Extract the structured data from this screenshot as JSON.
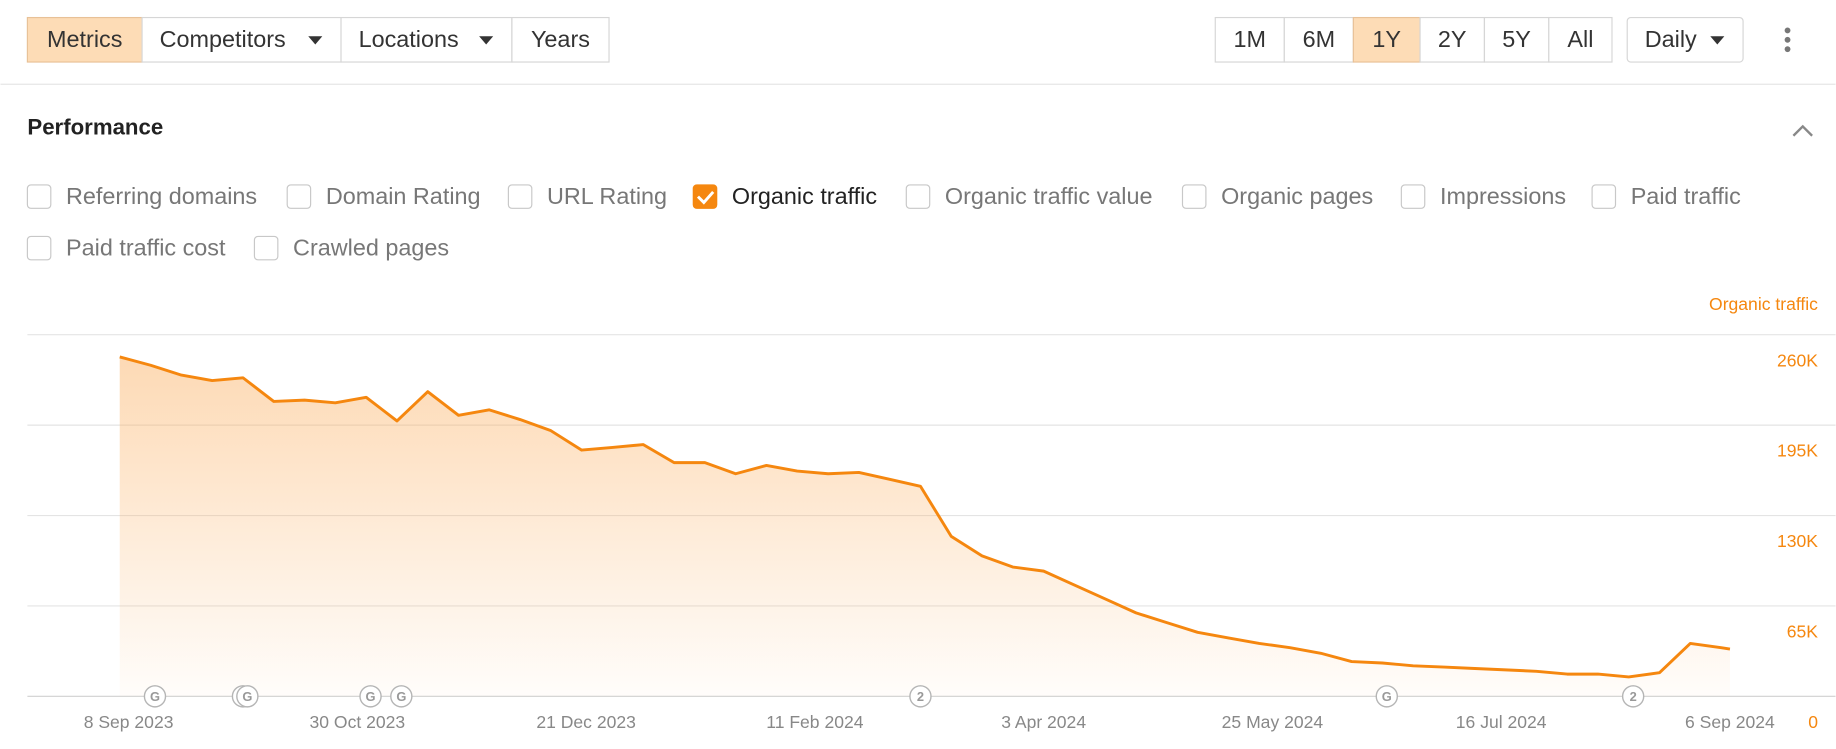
{
  "toolbar": {
    "filters": [
      {
        "label": "Metrics",
        "dropdown": false,
        "selected": true
      },
      {
        "label": "Competitors",
        "dropdown": true,
        "selected": false
      },
      {
        "label": "Locations",
        "dropdown": true,
        "selected": false
      },
      {
        "label": "Years",
        "dropdown": false,
        "selected": false
      }
    ],
    "ranges": [
      {
        "label": "1M",
        "selected": false
      },
      {
        "label": "6M",
        "selected": false
      },
      {
        "label": "1Y",
        "selected": true
      },
      {
        "label": "2Y",
        "selected": false
      },
      {
        "label": "5Y",
        "selected": false
      },
      {
        "label": "All",
        "selected": false
      }
    ],
    "granularity": "Daily"
  },
  "section": {
    "title": "Performance",
    "metrics": [
      {
        "label": "Referring domains",
        "checked": false
      },
      {
        "label": "Domain Rating",
        "checked": false
      },
      {
        "label": "URL Rating",
        "checked": false
      },
      {
        "label": "Organic traffic",
        "checked": true
      },
      {
        "label": "Organic traffic value",
        "checked": false
      },
      {
        "label": "Organic pages",
        "checked": false
      },
      {
        "label": "Impressions",
        "checked": false
      },
      {
        "label": "Paid traffic",
        "checked": false
      },
      {
        "label": "Paid traffic cost",
        "checked": false
      },
      {
        "label": "Crawled pages",
        "checked": false
      }
    ]
  },
  "chart_data": {
    "type": "area",
    "y_axis_label": "Organic traffic",
    "x": [
      "2023-09-06",
      "2023-09-13",
      "2023-09-20",
      "2023-09-27",
      "2023-10-04",
      "2023-10-11",
      "2023-10-18",
      "2023-10-25",
      "2023-11-01",
      "2023-11-08",
      "2023-11-15",
      "2023-11-22",
      "2023-11-29",
      "2023-12-06",
      "2023-12-13",
      "2023-12-20",
      "2023-12-27",
      "2024-01-03",
      "2024-01-10",
      "2024-01-17",
      "2024-01-24",
      "2024-01-31",
      "2024-02-07",
      "2024-02-14",
      "2024-02-21",
      "2024-02-28",
      "2024-03-06",
      "2024-03-13",
      "2024-03-20",
      "2024-03-27",
      "2024-04-03",
      "2024-04-10",
      "2024-04-17",
      "2024-04-24",
      "2024-05-01",
      "2024-05-08",
      "2024-05-15",
      "2024-05-22",
      "2024-05-29",
      "2024-06-05",
      "2024-06-12",
      "2024-06-19",
      "2024-06-26",
      "2024-07-03",
      "2024-07-10",
      "2024-07-17",
      "2024-07-24",
      "2024-07-31",
      "2024-08-07",
      "2024-08-14",
      "2024-08-21",
      "2024-08-28",
      "2024-09-04",
      "2024-09-06"
    ],
    "series": [
      {
        "name": "Organic traffic",
        "color": "#f5870f",
        "values": [
          244000,
          238000,
          231000,
          227000,
          229000,
          212000,
          213000,
          211000,
          215000,
          198000,
          219000,
          202000,
          206000,
          199000,
          191000,
          177000,
          179000,
          181000,
          168000,
          168000,
          160000,
          166000,
          162000,
          160000,
          161000,
          156000,
          151000,
          115000,
          101000,
          93000,
          90000,
          80000,
          70000,
          60000,
          53000,
          46000,
          42000,
          38000,
          35000,
          31000,
          25000,
          24000,
          22000,
          21000,
          20000,
          19000,
          18000,
          16000,
          16000,
          14000,
          17000,
          38000,
          35000,
          34000
        ]
      }
    ],
    "xlim": [
      "2023-08-16",
      "2024-09-30"
    ],
    "xticks": [
      {
        "value": "2023-09-08",
        "label": "8 Sep 2023"
      },
      {
        "value": "2023-10-30",
        "label": "30 Oct 2023"
      },
      {
        "value": "2023-12-21",
        "label": "21 Dec 2023"
      },
      {
        "value": "2024-02-11",
        "label": "11 Feb 2024"
      },
      {
        "value": "2024-04-03",
        "label": "3 Apr 2024"
      },
      {
        "value": "2024-05-25",
        "label": "25 May 2024"
      },
      {
        "value": "2024-07-16",
        "label": "16 Jul 2024"
      },
      {
        "value": "2024-09-06",
        "label": "6 Sep 2024"
      }
    ],
    "ylim": [
      0,
      260000
    ],
    "yticks": [
      0,
      {
        "value": 65000,
        "label": "65K"
      },
      {
        "value": 130000,
        "label": "130K"
      },
      {
        "value": 195000,
        "label": "195K"
      },
      {
        "value": 260000,
        "label": "260K"
      }
    ],
    "grid": true,
    "events": [
      {
        "date": "2023-09-14",
        "label": "G"
      },
      {
        "date": "2023-10-04",
        "label": "G"
      },
      {
        "date": "2023-10-05",
        "label": "G"
      },
      {
        "date": "2023-11-02",
        "label": "G"
      },
      {
        "date": "2023-11-09",
        "label": "G"
      },
      {
        "date": "2024-03-06",
        "label": "2"
      },
      {
        "date": "2024-06-20",
        "label": "G"
      },
      {
        "date": "2024-08-15",
        "label": "2"
      }
    ]
  }
}
